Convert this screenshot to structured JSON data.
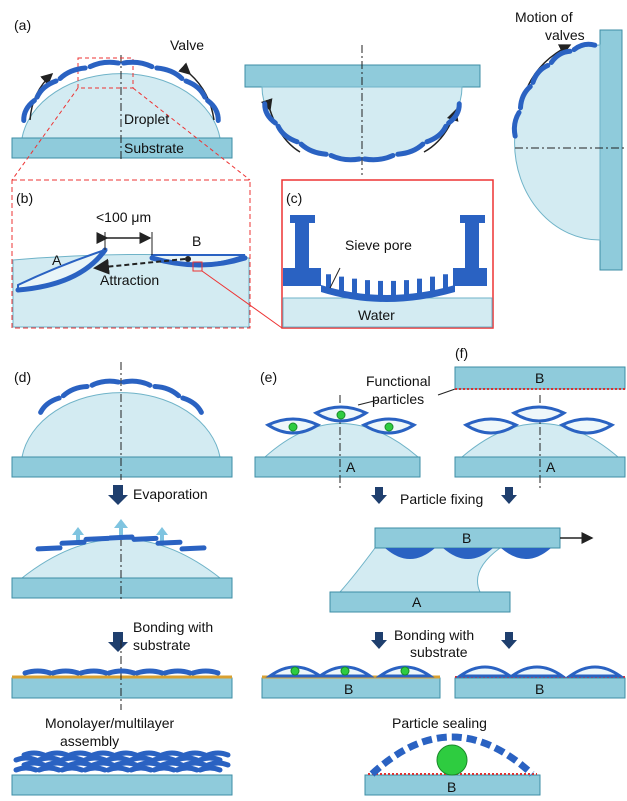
{
  "panel_a": {
    "label": "(a)",
    "valve": "Valve",
    "droplet": "Droplet",
    "substrate": "Substrate",
    "motion": [
      "Motion of",
      "valves"
    ]
  },
  "panel_b": {
    "label": "(b)",
    "distance": "<100 μm",
    "valve_a": "A",
    "valve_b": "B",
    "attraction": "Attraction"
  },
  "panel_c": {
    "label": "(c)",
    "sieve_pore": "Sieve pore",
    "water": "Water"
  },
  "panel_d": {
    "label": "(d)",
    "evaporation": "Evaporation",
    "bonding": [
      "Bonding with",
      "substrate"
    ],
    "assembly": [
      "Monolayer/multilayer",
      "assembly"
    ]
  },
  "panel_e": {
    "label": "(e)",
    "particles": [
      "Functional",
      "particles"
    ],
    "substrate_a": "A",
    "fixing": "Particle fixing",
    "top_b": "B",
    "bottom_a": "A",
    "bonding": [
      "Bonding with",
      "substrate"
    ],
    "result_b": "B",
    "sealing": "Particle sealing",
    "sealing_b": "B"
  },
  "panel_f": {
    "label": "(f)",
    "top_b": "B",
    "substrate_a": "A",
    "result_b": "B"
  }
}
